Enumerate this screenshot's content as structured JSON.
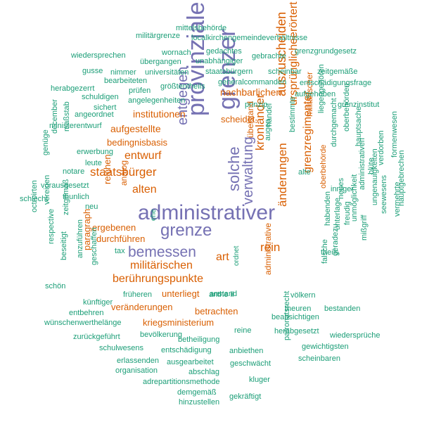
{
  "palette": {
    "purple": "#7571b3",
    "orange": "#d95f02",
    "teal": "#1b9e77"
  },
  "words": [
    {
      "text": "administrativer",
      "color": "purple"
    },
    {
      "text": "grenzer",
      "color": "purple"
    },
    {
      "text": "provinziale",
      "color": "purple"
    },
    {
      "text": "grenze",
      "color": "purple"
    },
    {
      "text": "bemessen",
      "color": "purple"
    },
    {
      "text": "solche",
      "color": "purple"
    },
    {
      "text": "entgegen",
      "color": "purple"
    },
    {
      "text": "verwaltung",
      "color": "purple"
    },
    {
      "text": "auszuscheiden",
      "color": "orange"
    },
    {
      "text": "ursprünglicheerörtert",
      "color": "orange"
    },
    {
      "text": "kronländer",
      "color": "orange"
    },
    {
      "text": "änderungen",
      "color": "orange"
    },
    {
      "text": "grenzregimenter",
      "color": "orange"
    },
    {
      "text": "art",
      "color": "orange"
    },
    {
      "text": "rein",
      "color": "orange"
    },
    {
      "text": "staatsbürger",
      "color": "orange"
    },
    {
      "text": "entwurf",
      "color": "orange"
    },
    {
      "text": "alten",
      "color": "orange"
    },
    {
      "text": "militärischen",
      "color": "orange"
    },
    {
      "text": "berührungspunkte",
      "color": "orange"
    },
    {
      "text": "nachbarlichen",
      "color": "orange"
    },
    {
      "text": "institutionen",
      "color": "orange"
    },
    {
      "text": "aufgestellte",
      "color": "orange"
    },
    {
      "text": "bedingnisbasis",
      "color": "orange"
    },
    {
      "text": "scheidet",
      "color": "orange"
    },
    {
      "text": "durchführen",
      "color": "orange"
    },
    {
      "text": "ergebenen",
      "color": "orange"
    },
    {
      "text": "unterliegt",
      "color": "orange"
    },
    {
      "text": "veränderungen",
      "color": "orange"
    },
    {
      "text": "betrachten",
      "color": "orange"
    },
    {
      "text": "kriegsministerium",
      "color": "orange"
    },
    {
      "text": "paragraph",
      "color": "orange"
    },
    {
      "text": "reichen",
      "color": "orange"
    },
    {
      "text": "analog",
      "color": "orange"
    },
    {
      "text": "übelstand",
      "color": "orange"
    },
    {
      "text": "militärischer",
      "color": "orange"
    },
    {
      "text": "oberbehörde",
      "color": "orange"
    },
    {
      "text": "administrative",
      "color": "orange"
    },
    {
      "text": "mittelsbehörde",
      "color": "teal"
    },
    {
      "text": "militärgrenze",
      "color": "teal"
    },
    {
      "text": "localkirchengemeindeverhältnisse",
      "color": "teal"
    },
    {
      "text": "wiedersprechen",
      "color": "teal"
    },
    {
      "text": "wornach",
      "color": "teal"
    },
    {
      "text": "gedachtes",
      "color": "teal"
    },
    {
      "text": "gebrachte",
      "color": "teal"
    },
    {
      "text": "grenzgrundgesetz",
      "color": "teal"
    },
    {
      "text": "übergangen",
      "color": "teal"
    },
    {
      "text": "unabhängiger",
      "color": "teal"
    },
    {
      "text": "gusse",
      "color": "teal"
    },
    {
      "text": "nimmer",
      "color": "teal"
    },
    {
      "text": "universitäten",
      "color": "teal"
    },
    {
      "text": "staatsbürgern",
      "color": "teal"
    },
    {
      "text": "scheinbar",
      "color": "teal"
    },
    {
      "text": "zeitgemäße",
      "color": "teal"
    },
    {
      "text": "bearbeiteten",
      "color": "teal"
    },
    {
      "text": "generalcommanden",
      "color": "teal"
    },
    {
      "text": "entschädigungsfrage",
      "color": "teal"
    },
    {
      "text": "herabgezerrt",
      "color": "teal"
    },
    {
      "text": "prüfen",
      "color": "teal"
    },
    {
      "text": "größtentheils",
      "color": "teal"
    },
    {
      "text": "aufgehoben",
      "color": "teal"
    },
    {
      "text": "schuldigen",
      "color": "teal"
    },
    {
      "text": "angelegenheiten",
      "color": "teal"
    },
    {
      "text": "sichert",
      "color": "teal"
    },
    {
      "text": "prinzip",
      "color": "teal"
    },
    {
      "text": "grenzinstitut",
      "color": "teal"
    },
    {
      "text": "angeordnet",
      "color": "teal"
    },
    {
      "text": "ministerentwurf",
      "color": "teal"
    },
    {
      "text": "december",
      "color": "teal"
    },
    {
      "text": "maßstab",
      "color": "teal"
    },
    {
      "text": "erwerbung",
      "color": "teal"
    },
    {
      "text": "genüge",
      "color": "teal"
    },
    {
      "text": "leute",
      "color": "teal"
    },
    {
      "text": "notare",
      "color": "teal"
    },
    {
      "text": "vorausgesetzt",
      "color": "teal"
    },
    {
      "text": "thunlich",
      "color": "teal"
    },
    {
      "text": "schlecht",
      "color": "teal"
    },
    {
      "text": "neu",
      "color": "teal"
    },
    {
      "text": "ehe",
      "color": "teal"
    },
    {
      "text": "tax",
      "color": "teal"
    },
    {
      "text": "octroirten",
      "color": "teal"
    },
    {
      "text": "vereinen",
      "color": "teal"
    },
    {
      "text": "zeitgemäß",
      "color": "teal"
    },
    {
      "text": "respective",
      "color": "teal"
    },
    {
      "text": "beseitigt",
      "color": "teal"
    },
    {
      "text": "anzuführen",
      "color": "teal"
    },
    {
      "text": "geschaffen",
      "color": "teal"
    },
    {
      "text": "ordnet",
      "color": "teal"
    },
    {
      "text": "früheren",
      "color": "teal"
    },
    {
      "text": "anstand",
      "color": "teal"
    },
    {
      "text": "schön",
      "color": "teal"
    },
    {
      "text": "künftiger",
      "color": "teal"
    },
    {
      "text": "entbehren",
      "color": "teal"
    },
    {
      "text": "wünschenwerthelänge",
      "color": "teal"
    },
    {
      "text": "anthe il",
      "color": "teal"
    },
    {
      "text": "theuren",
      "color": "teal"
    },
    {
      "text": "bestanden",
      "color": "teal"
    },
    {
      "text": "beabsichtigen",
      "color": "teal"
    },
    {
      "text": "zurückgeführt",
      "color": "teal"
    },
    {
      "text": "bevölkerung",
      "color": "teal"
    },
    {
      "text": "reine",
      "color": "teal"
    },
    {
      "text": "herabgesetzt",
      "color": "teal"
    },
    {
      "text": "wiedersprüche",
      "color": "teal"
    },
    {
      "text": "betheiligung",
      "color": "teal"
    },
    {
      "text": "schulwesens",
      "color": "teal"
    },
    {
      "text": "entschädigung",
      "color": "teal"
    },
    {
      "text": "anbiethen",
      "color": "teal"
    },
    {
      "text": "gewichtigsten",
      "color": "teal"
    },
    {
      "text": "erlassenden",
      "color": "teal"
    },
    {
      "text": "ausgearbeitet",
      "color": "teal"
    },
    {
      "text": "geschwächt",
      "color": "teal"
    },
    {
      "text": "scheinbaren",
      "color": "teal"
    },
    {
      "text": "organisation",
      "color": "teal"
    },
    {
      "text": "abschlag",
      "color": "teal"
    },
    {
      "text": "adrepartitionsmethode",
      "color": "teal"
    },
    {
      "text": "kluger",
      "color": "teal"
    },
    {
      "text": "demgemäß",
      "color": "teal"
    },
    {
      "text": "hinzustellen",
      "color": "teal"
    },
    {
      "text": "gekräftigt",
      "color": "teal"
    },
    {
      "text": "patronatsrecht",
      "color": "teal"
    },
    {
      "text": "völkern",
      "color": "teal"
    },
    {
      "text": "falsche",
      "color": "teal"
    },
    {
      "text": "geradezu",
      "color": "teal"
    },
    {
      "text": "unterlage",
      "color": "teal"
    },
    {
      "text": "theils",
      "color": "teal"
    },
    {
      "text": "habenden",
      "color": "teal"
    },
    {
      "text": "inniger",
      "color": "teal"
    },
    {
      "text": "freudig",
      "color": "teal"
    },
    {
      "text": "mißgriff",
      "color": "teal"
    },
    {
      "text": "unmöglichkeit",
      "color": "teal"
    },
    {
      "text": "neues",
      "color": "teal"
    },
    {
      "text": "ungenauigkeiten",
      "color": "teal"
    },
    {
      "text": "administrativen",
      "color": "teal"
    },
    {
      "text": "seewesens",
      "color": "teal"
    },
    {
      "text": "vermehrte",
      "color": "teal"
    },
    {
      "text": "hauptgebrechen",
      "color": "teal"
    },
    {
      "text": "formenwesen",
      "color": "teal"
    },
    {
      "text": "verdorben",
      "color": "teal"
    },
    {
      "text": "blüte",
      "color": "teal"
    },
    {
      "text": "hauptsache",
      "color": "teal"
    },
    {
      "text": "oberbehörden",
      "color": "teal"
    },
    {
      "text": "durchgemacht",
      "color": "teal"
    },
    {
      "text": "liegengehören",
      "color": "teal"
    },
    {
      "text": "alte",
      "color": "teal"
    },
    {
      "text": "bestimmte",
      "color": "teal"
    },
    {
      "text": "augen",
      "color": "teal"
    },
    {
      "text": "handel",
      "color": "teal"
    }
  ]
}
